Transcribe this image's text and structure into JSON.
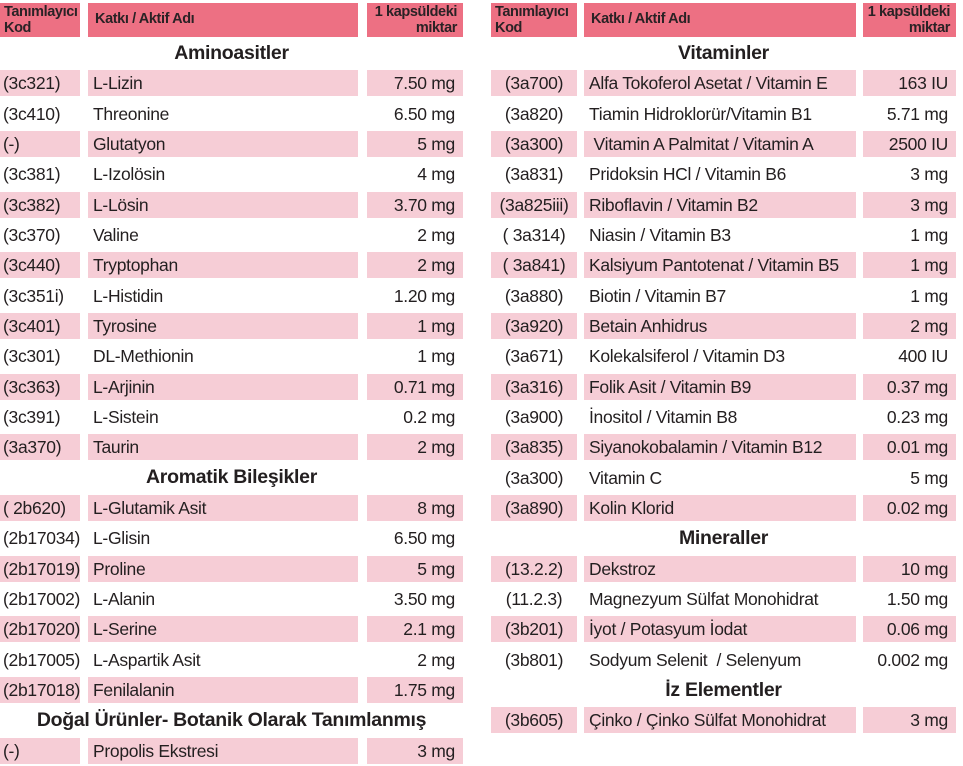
{
  "colors": {
    "header_pink": "#ed7083",
    "row_pink": "#f6cdd6",
    "text": "#231f20"
  },
  "tables": [
    {
      "id": "left",
      "header": {
        "code": "Tanımlayıcı\nKod",
        "name": "Katkı / Aktif Adı",
        "amount": "1 kapsüldeki\nmiktar"
      },
      "sections": [
        {
          "title": "Aminoasitler",
          "rows": [
            {
              "code": "(3c321)",
              "name": "L-Lizin",
              "amount": "7.50 mg"
            },
            {
              "code": "(3c410)",
              "name": "Threonine",
              "amount": "6.50 mg"
            },
            {
              "code": "(-)",
              "name": "Glutatyon",
              "amount": "5 mg"
            },
            {
              "code": "(3c381)",
              "name": "L-Izolösin",
              "amount": "4 mg"
            },
            {
              "code": "(3c382)",
              "name": "L-Lösin",
              "amount": "3.70 mg"
            },
            {
              "code": "(3c370)",
              "name": "Valine",
              "amount": "2 mg"
            },
            {
              "code": "(3c440)",
              "name": "Tryptophan",
              "amount": "2 mg"
            },
            {
              "code": "(3c351i)",
              "name": "L-Histidin",
              "amount": "1.20 mg"
            },
            {
              "code": "(3c401)",
              "name": "Tyrosine",
              "amount": "1 mg"
            },
            {
              "code": "(3c301)",
              "name": "DL-Methionin",
              "amount": "1 mg"
            },
            {
              "code": "(3c363)",
              "name": "L-Arjinin",
              "amount": "0.71 mg"
            },
            {
              "code": "(3c391)",
              "name": "L-Sistein",
              "amount": "0.2 mg"
            },
            {
              "code": "(3a370)",
              "name": "Taurin",
              "amount": "2 mg"
            }
          ]
        },
        {
          "title": "Aromatik Bileşikler",
          "rows": [
            {
              "code": "( 2b620)",
              "name": "L-Glutamik Asit",
              "amount": "8 mg"
            },
            {
              "code": "(2b17034)",
              "name": "L-Glisin",
              "amount": "6.50 mg"
            },
            {
              "code": "(2b17019)",
              "name": "Proline",
              "amount": "5 mg"
            },
            {
              "code": "(2b17002)",
              "name": "L-Alanin",
              "amount": "3.50 mg"
            },
            {
              "code": "(2b17020)",
              "name": "L-Serine",
              "amount": "2.1 mg"
            },
            {
              "code": "(2b17005)",
              "name": "L-Aspartik Asit",
              "amount": "2 mg"
            },
            {
              "code": "(2b17018)",
              "name": "Fenilalanin",
              "amount": "1.75 mg"
            }
          ]
        },
        {
          "title": "Doğal Ürünler- Botanik Olarak Tanımlanmış",
          "rows": [
            {
              "code": "(-)",
              "name": "Propolis Ekstresi",
              "amount": "3 mg"
            }
          ]
        }
      ]
    },
    {
      "id": "right",
      "header": {
        "code": "Tanımlayıcı\nKod",
        "name": "Katkı / Aktif Adı",
        "amount": "1 kapsüldeki\nmiktar"
      },
      "sections": [
        {
          "title": "Vitaminler",
          "rows": [
            {
              "code": "(3a700)",
              "name": "Alfa Tokoferol Asetat / Vitamin E",
              "amount": "163 IU"
            },
            {
              "code": "(3a820)",
              "name": "Tiamin Hidroklorür/Vitamin B1",
              "amount": "5.71 mg"
            },
            {
              "code": "(3a300)",
              "name": " Vitamin A Palmitat / Vitamin A",
              "amount": "2500 IU"
            },
            {
              "code": "(3a831)",
              "name": "Pridoksin HCl / Vitamin B6",
              "amount": "3 mg"
            },
            {
              "code": "(3a825iii)",
              "name": "Riboflavin / Vitamin B2",
              "amount": "3 mg"
            },
            {
              "code": "( 3a314)",
              "name": "Niasin / Vitamin B3",
              "amount": "1 mg"
            },
            {
              "code": "( 3a841)",
              "name": "Kalsiyum Pantotenat / Vitamin B5",
              "amount": "1 mg"
            },
            {
              "code": "(3a880)",
              "name": "Biotin / Vitamin B7",
              "amount": "1 mg"
            },
            {
              "code": "(3a920)",
              "name": "Betain Anhidrus",
              "amount": "2 mg"
            },
            {
              "code": "(3a671)",
              "name": "Kolekalsiferol / Vitamin D3",
              "amount": "400 IU"
            },
            {
              "code": "(3a316)",
              "name": "Folik Asit / Vitamin B9",
              "amount": "0.37 mg"
            },
            {
              "code": "(3a900)",
              "name": "İnositol / Vitamin B8",
              "amount": "0.23 mg"
            },
            {
              "code": "(3a835)",
              "name": "Siyanokobalamin / Vitamin B12",
              "amount": "0.01 mg"
            },
            {
              "code": "(3a300)",
              "name": "Vitamin C",
              "amount": "5 mg"
            },
            {
              "code": "(3a890)",
              "name": "Kolin Klorid",
              "amount": "0.02 mg"
            }
          ]
        },
        {
          "title": "Mineraller",
          "rows": [
            {
              "code": "(13.2.2)",
              "name": "Dekstroz",
              "amount": "10 mg"
            },
            {
              "code": "(11.2.3)",
              "name": "Magnezyum Sülfat Monohidrat",
              "amount": "1.50 mg"
            },
            {
              "code": "(3b201)",
              "name": "İyot / Potasyum İodat",
              "amount": "0.06 mg"
            },
            {
              "code": "(3b801)",
              "name": "Sodyum Selenit  / Selenyum",
              "amount": "0.002 mg"
            }
          ]
        },
        {
          "title": "İz Elementler",
          "rows": [
            {
              "code": "(3b605)",
              "name": "Çinko / Çinko Sülfat Monohidrat",
              "amount": "3 mg"
            }
          ]
        }
      ]
    }
  ]
}
